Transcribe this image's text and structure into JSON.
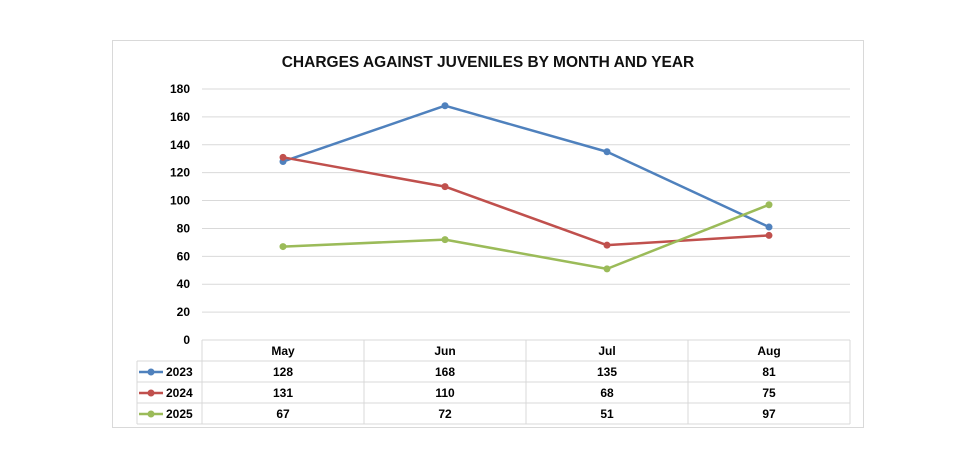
{
  "chart_data": {
    "type": "line",
    "title": "CHARGES AGAINST JUVENILES BY MONTH AND YEAR",
    "categories": [
      "May",
      "Jun",
      "Jul",
      "Aug"
    ],
    "series": [
      {
        "name": "2023",
        "values": [
          128,
          168,
          135,
          81
        ],
        "color": "#4f81bd"
      },
      {
        "name": "2024",
        "values": [
          131,
          110,
          68,
          75
        ],
        "color": "#c0504d"
      },
      {
        "name": "2025",
        "values": [
          67,
          72,
          51,
          97
        ],
        "color": "#9bbb59"
      }
    ],
    "ylim": [
      0,
      180
    ],
    "yticks": [
      0,
      20,
      40,
      60,
      80,
      100,
      120,
      140,
      160,
      180
    ],
    "grid": true,
    "legend": "data-table"
  }
}
